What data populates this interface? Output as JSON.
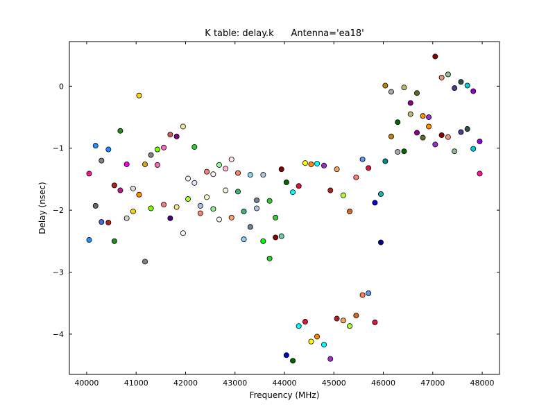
{
  "chart_data": {
    "type": "scatter",
    "title": "K table: delay.k      Antenna='ea18'",
    "xlabel": "Frequency (MHz)",
    "ylabel": "Delay (nsec)",
    "xlim": [
      39650,
      48350
    ],
    "ylim": [
      -4.65,
      0.72
    ],
    "xticks": [
      40000,
      41000,
      42000,
      43000,
      44000,
      45000,
      46000,
      47000,
      48000
    ],
    "xtick_labels": [
      "40000",
      "41000",
      "42000",
      "43000",
      "44000",
      "45000",
      "46000",
      "47000",
      "48000"
    ],
    "yticks": [
      0,
      -1,
      -2,
      -3,
      -4
    ],
    "ytick_labels": [
      "0",
      "−1",
      "−2",
      "−3",
      "−4"
    ],
    "grid": false,
    "points": [
      {
        "x": 40050,
        "y": -1.41,
        "color": "#ff1493"
      },
      {
        "x": 40050,
        "y": -2.48,
        "color": "#1e90ff"
      },
      {
        "x": 40180,
        "y": -0.96,
        "color": "#1e90ff"
      },
      {
        "x": 40180,
        "y": -1.93,
        "color": "#696969"
      },
      {
        "x": 40300,
        "y": -1.2,
        "color": "#808080"
      },
      {
        "x": 40300,
        "y": -2.19,
        "color": "#4169e1"
      },
      {
        "x": 40440,
        "y": -1.02,
        "color": "#1e90ff"
      },
      {
        "x": 40440,
        "y": -2.2,
        "color": "#b22222"
      },
      {
        "x": 40560,
        "y": -1.6,
        "color": "#b22222"
      },
      {
        "x": 40560,
        "y": -2.5,
        "color": "#228b22"
      },
      {
        "x": 40680,
        "y": -0.72,
        "color": "#228b22"
      },
      {
        "x": 40680,
        "y": -1.68,
        "color": "#c71585"
      },
      {
        "x": 40810,
        "y": -1.26,
        "color": "#ee00ee"
      },
      {
        "x": 40810,
        "y": -2.13,
        "color": "#d3d3d3"
      },
      {
        "x": 40940,
        "y": -1.65,
        "color": "#dcdcdc"
      },
      {
        "x": 40940,
        "y": -2.02,
        "color": "#ffd700"
      },
      {
        "x": 41060,
        "y": -0.15,
        "color": "#ffd700"
      },
      {
        "x": 41060,
        "y": -1.75,
        "color": "#ff8c00"
      },
      {
        "x": 41180,
        "y": -1.26,
        "color": "#daa520"
      },
      {
        "x": 41180,
        "y": -2.83,
        "color": "#808080"
      },
      {
        "x": 41300,
        "y": -1.11,
        "color": "#808080"
      },
      {
        "x": 41300,
        "y": -1.97,
        "color": "#7cfc00"
      },
      {
        "x": 41430,
        "y": -1.02,
        "color": "#7cfc00"
      },
      {
        "x": 41430,
        "y": -1.27,
        "color": "#ff69b4"
      },
      {
        "x": 41560,
        "y": -0.99,
        "color": "#ff69b4"
      },
      {
        "x": 41560,
        "y": -1.91,
        "color": "#f08080"
      },
      {
        "x": 41690,
        "y": -0.78,
        "color": "#cd5c5c"
      },
      {
        "x": 41690,
        "y": -2.13,
        "color": "#4b0082"
      },
      {
        "x": 41820,
        "y": -0.81,
        "color": "#800080"
      },
      {
        "x": 41820,
        "y": -1.95,
        "color": "#f0e68c"
      },
      {
        "x": 41950,
        "y": -0.65,
        "color": "#eee8aa"
      },
      {
        "x": 41950,
        "y": -2.37,
        "color": "#f5f5f5"
      },
      {
        "x": 42050,
        "y": -1.49,
        "color": "#f0f8ff"
      },
      {
        "x": 42050,
        "y": -1.82,
        "color": "#adff2f"
      },
      {
        "x": 42180,
        "y": -0.98,
        "color": "#32cd32"
      },
      {
        "x": 42180,
        "y": -1.56,
        "color": "#e6e6fa"
      },
      {
        "x": 42300,
        "y": -1.93,
        "color": "#b0c4de"
      },
      {
        "x": 42300,
        "y": -2.05,
        "color": "#fa8072"
      },
      {
        "x": 42430,
        "y": -1.38,
        "color": "#f08080"
      },
      {
        "x": 42430,
        "y": -1.79,
        "color": "#fffacd"
      },
      {
        "x": 42560,
        "y": -1.42,
        "color": "#fff0f5"
      },
      {
        "x": 42560,
        "y": -1.98,
        "color": "#90ee90"
      },
      {
        "x": 42680,
        "y": -1.27,
        "color": "#98fb98"
      },
      {
        "x": 42680,
        "y": -2.15,
        "color": "#f5f5f5"
      },
      {
        "x": 42810,
        "y": -1.33,
        "color": "#ffc0cb"
      },
      {
        "x": 42810,
        "y": -1.68,
        "color": "#f5f5dc"
      },
      {
        "x": 42930,
        "y": -1.18,
        "color": "#ffe4e1"
      },
      {
        "x": 42930,
        "y": -2.12,
        "color": "#ffa07a"
      },
      {
        "x": 43060,
        "y": -1.4,
        "color": "#fa8072"
      },
      {
        "x": 43060,
        "y": -1.7,
        "color": "#3cb371"
      },
      {
        "x": 43180,
        "y": -2.02,
        "color": "#3cb371"
      },
      {
        "x": 43180,
        "y": -2.47,
        "color": "#87cefa"
      },
      {
        "x": 43310,
        "y": -1.43,
        "color": "#87ceeb"
      },
      {
        "x": 43310,
        "y": -2.27,
        "color": "#708090"
      },
      {
        "x": 43440,
        "y": -1.84,
        "color": "#708090"
      },
      {
        "x": 43440,
        "y": -1.97,
        "color": "#b0c4de"
      },
      {
        "x": 43570,
        "y": -1.43,
        "color": "#b0c4de"
      },
      {
        "x": 43570,
        "y": -2.5,
        "color": "#00ff00"
      },
      {
        "x": 43700,
        "y": -1.85,
        "color": "#32cd32"
      },
      {
        "x": 43700,
        "y": -2.78,
        "color": "#32cd32"
      },
      {
        "x": 43820,
        "y": -2.12,
        "color": "#32cd32"
      },
      {
        "x": 43820,
        "y": -2.44,
        "color": "#8b0000"
      },
      {
        "x": 43940,
        "y": -1.34,
        "color": "#8b0000"
      },
      {
        "x": 43940,
        "y": -2.42,
        "color": "#66cdaa"
      },
      {
        "x": 44040,
        "y": -1.55,
        "color": "#006400"
      },
      {
        "x": 44040,
        "y": -4.34,
        "color": "#0000cd"
      },
      {
        "x": 44170,
        "y": -1.71,
        "color": "#00ffff"
      },
      {
        "x": 44170,
        "y": -4.43,
        "color": "#006400"
      },
      {
        "x": 44290,
        "y": -1.61,
        "color": "#dc143c"
      },
      {
        "x": 44290,
        "y": -3.87,
        "color": "#00ffff"
      },
      {
        "x": 44420,
        "y": -1.24,
        "color": "#ffff00"
      },
      {
        "x": 44420,
        "y": -3.8,
        "color": "#dc143c"
      },
      {
        "x": 44540,
        "y": -1.26,
        "color": "#ff8c00"
      },
      {
        "x": 44540,
        "y": -4.12,
        "color": "#ffff00"
      },
      {
        "x": 44660,
        "y": -1.25,
        "color": "#00ffff"
      },
      {
        "x": 44660,
        "y": -4.04,
        "color": "#ff8c00"
      },
      {
        "x": 44800,
        "y": -1.28,
        "color": "#9932cc"
      },
      {
        "x": 44800,
        "y": -4.17,
        "color": "#00ffff"
      },
      {
        "x": 44930,
        "y": -1.68,
        "color": "#b22222"
      },
      {
        "x": 44930,
        "y": -4.4,
        "color": "#9932cc"
      },
      {
        "x": 45060,
        "y": -1.34,
        "color": "#f4a460"
      },
      {
        "x": 45060,
        "y": -3.75,
        "color": "#b22222"
      },
      {
        "x": 45190,
        "y": -1.76,
        "color": "#adff2f"
      },
      {
        "x": 45190,
        "y": -3.78,
        "color": "#f4a460"
      },
      {
        "x": 45320,
        "y": -2.02,
        "color": "#d2691e"
      },
      {
        "x": 45320,
        "y": -3.87,
        "color": "#adff2f"
      },
      {
        "x": 45450,
        "y": -1.47,
        "color": "#fa8072"
      },
      {
        "x": 45450,
        "y": -3.7,
        "color": "#d2691e"
      },
      {
        "x": 45580,
        "y": -1.18,
        "color": "#6495ed"
      },
      {
        "x": 45580,
        "y": -3.37,
        "color": "#ff7f50"
      },
      {
        "x": 45700,
        "y": -1.32,
        "color": "#dc143c"
      },
      {
        "x": 45700,
        "y": -3.34,
        "color": "#6495ed"
      },
      {
        "x": 45830,
        "y": -1.88,
        "color": "#0000cd"
      },
      {
        "x": 45830,
        "y": -3.81,
        "color": "#dc143c"
      },
      {
        "x": 45950,
        "y": -1.74,
        "color": "#20b2aa"
      },
      {
        "x": 45950,
        "y": -2.52,
        "color": "#00008b"
      },
      {
        "x": 46040,
        "y": 0.01,
        "color": "#b8860b"
      },
      {
        "x": 46040,
        "y": -1.21,
        "color": "#008b8b"
      },
      {
        "x": 46160,
        "y": -0.09,
        "color": "#a9a9a9"
      },
      {
        "x": 46160,
        "y": -0.81,
        "color": "#b8860b"
      },
      {
        "x": 46290,
        "y": -0.58,
        "color": "#006400"
      },
      {
        "x": 46290,
        "y": -1.06,
        "color": "#a9a9a9"
      },
      {
        "x": 46420,
        "y": -0.02,
        "color": "#bdb76b"
      },
      {
        "x": 46420,
        "y": -1.05,
        "color": "#006400"
      },
      {
        "x": 46550,
        "y": -0.27,
        "color": "#8b008b"
      },
      {
        "x": 46550,
        "y": -0.45,
        "color": "#bdb76b"
      },
      {
        "x": 46680,
        "y": -0.11,
        "color": "#556b2f"
      },
      {
        "x": 46680,
        "y": -0.75,
        "color": "#8b008b"
      },
      {
        "x": 46800,
        "y": -0.48,
        "color": "#ff8c00"
      },
      {
        "x": 46800,
        "y": -0.83,
        "color": "#556b2f"
      },
      {
        "x": 46920,
        "y": -0.5,
        "color": "#9932cc"
      },
      {
        "x": 46920,
        "y": -0.65,
        "color": "#ff8c00"
      },
      {
        "x": 47050,
        "y": 0.48,
        "color": "#8b0000"
      },
      {
        "x": 47050,
        "y": -0.94,
        "color": "#9932cc"
      },
      {
        "x": 47180,
        "y": 0.14,
        "color": "#e9967a"
      },
      {
        "x": 47180,
        "y": -0.79,
        "color": "#8b0000"
      },
      {
        "x": 47310,
        "y": 0.19,
        "color": "#8fbc8f"
      },
      {
        "x": 47310,
        "y": -0.82,
        "color": "#e9967a"
      },
      {
        "x": 47440,
        "y": -0.03,
        "color": "#483d8b"
      },
      {
        "x": 47440,
        "y": -1.05,
        "color": "#8fbc8f"
      },
      {
        "x": 47570,
        "y": 0.07,
        "color": "#2f4f4f"
      },
      {
        "x": 47570,
        "y": -0.74,
        "color": "#483d8b"
      },
      {
        "x": 47700,
        "y": 0.01,
        "color": "#00ced1"
      },
      {
        "x": 47700,
        "y": -0.69,
        "color": "#2f4f4f"
      },
      {
        "x": 47820,
        "y": -0.08,
        "color": "#9400d3"
      },
      {
        "x": 47820,
        "y": -1.01,
        "color": "#00ced1"
      },
      {
        "x": 47950,
        "y": -0.89,
        "color": "#9400d3"
      },
      {
        "x": 47950,
        "y": -1.41,
        "color": "#ff1493"
      }
    ]
  }
}
